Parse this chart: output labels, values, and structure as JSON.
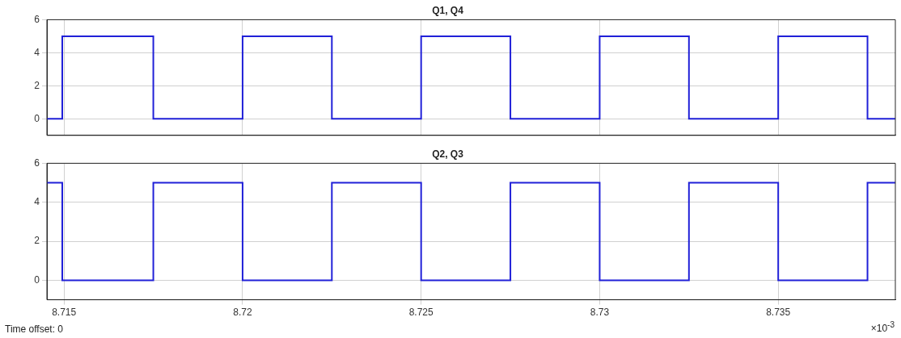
{
  "chart_data": [
    {
      "type": "step",
      "title": "Q1, Q4",
      "x": [
        8.71452,
        8.71495,
        8.7175,
        8.72,
        8.7225,
        8.725,
        8.7275,
        8.73,
        8.7325,
        8.735,
        8.7375,
        8.73828
      ],
      "series": [
        {
          "color": "#2020d8",
          "values": [
            0,
            5,
            0,
            5,
            0,
            5,
            0,
            5,
            0,
            5,
            0,
            0
          ]
        }
      ],
      "xlim": [
        8.71452,
        8.73828
      ],
      "xticks": [
        8.715,
        8.72,
        8.725,
        8.73,
        8.735
      ],
      "ylim": [
        -1,
        6
      ],
      "yticks": [
        0,
        2,
        4,
        6
      ],
      "grid": true,
      "legend": false,
      "tick_labels": "y"
    },
    {
      "type": "step",
      "title": "Q2, Q3",
      "x": [
        8.71452,
        8.71495,
        8.7175,
        8.72,
        8.7225,
        8.725,
        8.7275,
        8.73,
        8.7325,
        8.735,
        8.7375,
        8.73828
      ],
      "series": [
        {
          "color": "#2020d8",
          "values": [
            5,
            0,
            5,
            0,
            5,
            0,
            5,
            0,
            5,
            0,
            5,
            5
          ]
        }
      ],
      "xlim": [
        8.71452,
        8.73828
      ],
      "xticks": [
        8.715,
        8.72,
        8.725,
        8.73,
        8.735
      ],
      "ylim": [
        -1,
        6
      ],
      "yticks": [
        0,
        2,
        4,
        6
      ],
      "grid": true,
      "legend": false,
      "annotations": [
        "Time offset:  0",
        "×10$^{-3}$"
      ]
    }
  ]
}
